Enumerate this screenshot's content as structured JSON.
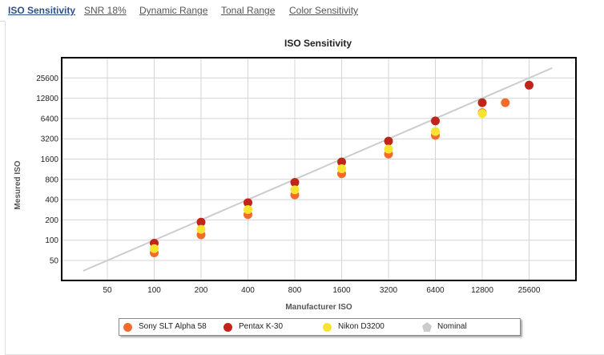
{
  "tabs": [
    {
      "label": "ISO Sensitivity",
      "active": true
    },
    {
      "label": "SNR 18%",
      "active": false
    },
    {
      "label": "Dynamic Range",
      "active": false
    },
    {
      "label": "Tonal Range",
      "active": false
    },
    {
      "label": "Color Sensitivity",
      "active": false
    }
  ],
  "chart_data": {
    "type": "scatter",
    "title": "ISO Sensitivity",
    "xlabel": "Manufacturer ISO",
    "ylabel": "Mesured ISO",
    "x_scale": "log2",
    "y_scale": "log2",
    "x_ticks": [
      "50",
      "100",
      "200",
      "400",
      "800",
      "1600",
      "3200",
      "6400",
      "12800",
      "25600"
    ],
    "y_ticks": [
      "50",
      "100",
      "200",
      "400",
      "800",
      "1600",
      "3200",
      "6400",
      "12800",
      "25600"
    ],
    "grid": true,
    "legend_position": "bottom",
    "series": [
      {
        "name": "Sony SLT Alpha 58",
        "color": "#f26b2a",
        "marker": "circle",
        "points": [
          [
            100,
            65
          ],
          [
            200,
            120
          ],
          [
            400,
            240
          ],
          [
            800,
            470
          ],
          [
            1600,
            970
          ],
          [
            3200,
            1900
          ],
          [
            6400,
            3600
          ],
          [
            12800,
            7800
          ],
          [
            18000,
            11000
          ]
        ]
      },
      {
        "name": "Pentax K-30",
        "color": "#c1241b",
        "marker": "circle",
        "points": [
          [
            100,
            90
          ],
          [
            200,
            185
          ],
          [
            400,
            360
          ],
          [
            800,
            720
          ],
          [
            1600,
            1450
          ],
          [
            3200,
            2950
          ],
          [
            6400,
            5900
          ],
          [
            12800,
            11000
          ],
          [
            25600,
            20000
          ]
        ]
      },
      {
        "name": "Nikon D3200",
        "color": "#f8e331",
        "marker": "circle",
        "points": [
          [
            100,
            75
          ],
          [
            200,
            145
          ],
          [
            400,
            285
          ],
          [
            800,
            560
          ],
          [
            1600,
            1150
          ],
          [
            3200,
            2250
          ],
          [
            6400,
            4100
          ],
          [
            12800,
            7600
          ]
        ]
      },
      {
        "name": "Nominal",
        "color": "#cccccc",
        "marker": "pentagon",
        "line": true,
        "points": [
          [
            35,
            35
          ],
          [
            36000,
            36000
          ]
        ]
      }
    ]
  }
}
